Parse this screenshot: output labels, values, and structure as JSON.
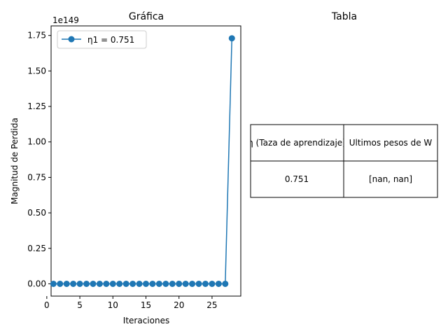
{
  "chart_data": [
    {
      "type": "line",
      "title": "Gráfica",
      "xlabel": "Iteraciones",
      "ylabel": "Magnitud de Perdida",
      "y_offset_text": "1e149",
      "xlim": [
        0.65,
        29.35
      ],
      "ylim": [
        -0.0866,
        1.8175
      ],
      "xticks": [
        0,
        5,
        10,
        15,
        20,
        25
      ],
      "yticks": [
        0.0,
        0.25,
        0.5,
        0.75,
        1.0,
        1.25,
        1.5,
        1.75
      ],
      "ytick_labels": [
        "0.00",
        "0.25",
        "0.50",
        "0.75",
        "1.00",
        "1.25",
        "1.50",
        "1.75"
      ],
      "grid": false,
      "legend_position": "upper-left",
      "series": [
        {
          "name": "η1 = 0.751",
          "color": "#1f77b4",
          "marker": "circle",
          "x": [
            1,
            2,
            3,
            4,
            5,
            6,
            7,
            8,
            9,
            10,
            11,
            12,
            13,
            14,
            15,
            16,
            17,
            18,
            19,
            20,
            21,
            22,
            23,
            24,
            25,
            26,
            27,
            28
          ],
          "y": [
            0,
            0,
            0,
            0,
            0,
            0,
            0,
            0,
            0,
            0,
            0,
            0,
            0,
            0,
            0,
            0,
            0,
            0,
            0,
            0,
            0,
            0,
            0,
            0,
            0,
            0,
            0,
            1.73
          ]
        }
      ]
    },
    {
      "type": "table",
      "title": "Tabla",
      "columns": [
        "η (Taza de aprendizaje)",
        "Ultimos pesos de W"
      ],
      "rows": [
        [
          "0.751",
          "[nan, nan]"
        ]
      ]
    }
  ]
}
